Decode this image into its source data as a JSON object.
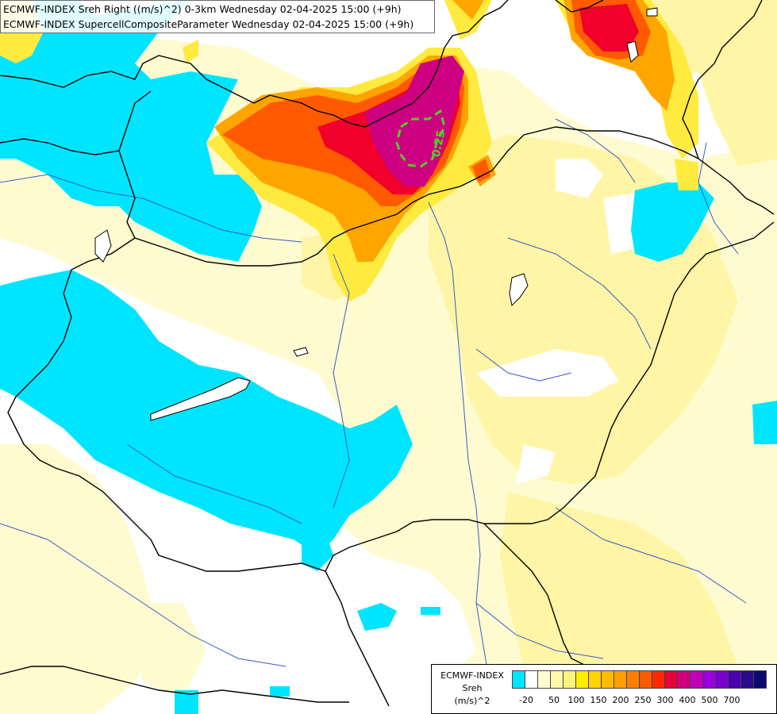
{
  "header": {
    "line1": "ECMWF-INDEX Sreh Right ((m/s)^2) 0-3km Wednesday 02-04-2025 15:00 (+9h)",
    "line2": "ECMWF-INDEX SupercellCompositeParameter Wednesday 02-04-2025 15:00 (+9h)"
  },
  "contour_label": "0.25",
  "legend": {
    "title_line1": "ECMWF-INDEX",
    "title_line2": "Sreh",
    "title_line3": "(m/s)^2",
    "colors": [
      "#00e5ff",
      "#ffffff",
      "#fffbd0",
      "#fff8a8",
      "#fff27a",
      "#ffec00",
      "#ffd400",
      "#ffbb00",
      "#ff9f00",
      "#ff7f00",
      "#ff5a00",
      "#ff2a00",
      "#e8003a",
      "#d0007a",
      "#c000b8",
      "#9800e0",
      "#7a00d0",
      "#4c00b0",
      "#2a0a8c",
      "#0a0a70"
    ],
    "ticks": [
      "-20",
      "50",
      "100",
      "150",
      "200",
      "250",
      "300",
      "400",
      "500",
      "700"
    ]
  },
  "colors": {
    "cyan": "#00e5ff",
    "pale_yellow": "#fffbd0",
    "light_yellow": "#fff5a6",
    "yellow": "#ffea40",
    "orange": "#ffa500",
    "red_orange": "#ff5a00",
    "red": "#f0002a",
    "magenta": "#cc0080",
    "border": "#000000",
    "river": "#3a5bc8",
    "contour": "#55cc22"
  }
}
